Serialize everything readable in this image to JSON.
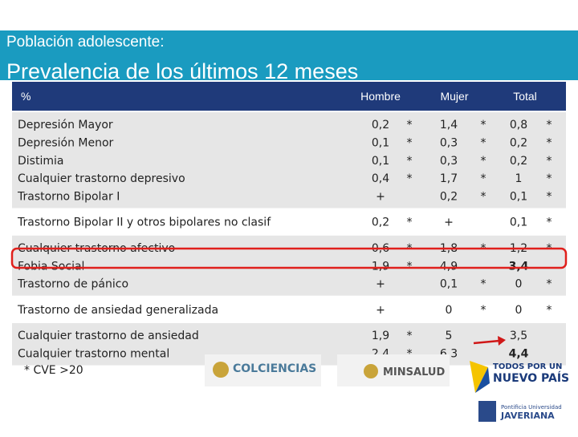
{
  "header": {
    "subtitle": "Población adolescente:",
    "title": "Prevalencia de los últimos 12 meses"
  },
  "table": {
    "columns": [
      "%",
      "Hombre",
      "Mujer",
      "Total"
    ],
    "groups": [
      {
        "rows": [
          {
            "label": "Depresión Mayor",
            "hombre": [
              "0,2",
              "*"
            ],
            "mujer": [
              "1,4",
              "*"
            ],
            "total": [
              "0,8",
              "*"
            ]
          },
          {
            "label": "Depresión Menor",
            "hombre": [
              "0,1",
              "*"
            ],
            "mujer": [
              "0,3",
              "*"
            ],
            "total": [
              "0,2",
              "*"
            ]
          },
          {
            "label": "Distimia",
            "hombre": [
              "0,1",
              "*"
            ],
            "mujer": [
              "0,3",
              "*"
            ],
            "total": [
              "0,2",
              "*"
            ]
          },
          {
            "label": "Cualquier trastorno depresivo",
            "hombre": [
              "0,4",
              "*"
            ],
            "mujer": [
              "1,7",
              "*"
            ],
            "total": [
              "1",
              "*"
            ]
          },
          {
            "label": "Trastorno Bipolar I",
            "hombre": [
              "+"
            ],
            "mujer": [
              "0,2",
              "*"
            ],
            "total": [
              "0,1",
              "*"
            ]
          }
        ]
      },
      {
        "rows": [
          {
            "label": "Trastorno Bipolar II y otros bipolares no clasif",
            "hombre": [
              "0,2",
              "*"
            ],
            "mujer": [
              "+"
            ],
            "total": [
              "0,1",
              "*"
            ]
          }
        ]
      },
      {
        "rows": [
          {
            "label": "Cualquier trastorno afectivo",
            "hombre": [
              "0,6",
              "*"
            ],
            "mujer": [
              "1,8",
              "*"
            ],
            "total": [
              "1,2",
              "*"
            ]
          },
          {
            "label": "Fobia Social",
            "hombre": [
              "1,9",
              "*"
            ],
            "mujer": [
              "4,9"
            ],
            "total": [
              "3,4"
            ],
            "bold_total": true
          },
          {
            "label": "Trastorno de pánico",
            "hombre": [
              "+"
            ],
            "mujer": [
              "0,1",
              "*"
            ],
            "total": [
              "0",
              "*"
            ]
          }
        ]
      },
      {
        "rows": [
          {
            "label": "Trastorno de ansiedad generalizada",
            "hombre": [
              "+"
            ],
            "mujer": [
              "0",
              "*"
            ],
            "total": [
              "0",
              "*"
            ]
          }
        ]
      },
      {
        "rows": [
          {
            "label": "Cualquier trastorno de ansiedad",
            "hombre": [
              "1,9",
              "*"
            ],
            "mujer": [
              "5"
            ],
            "total": [
              "3,5"
            ]
          },
          {
            "label": "Cualquier trastorno mental",
            "hombre": [
              "2,4",
              "*"
            ],
            "mujer": [
              "6,3"
            ],
            "total": [
              "4,4"
            ],
            "bold_total": true
          }
        ]
      }
    ],
    "footnote": "* CVE >20"
  },
  "logos": {
    "colciencias": "COLCIENCIAS",
    "minsalud": "MINSALUD",
    "gobierno": [
      "TODOS POR UN",
      "NUEVO PAÍS"
    ],
    "javeriana": [
      "Pontificia Universidad",
      "JAVERIANA"
    ]
  }
}
